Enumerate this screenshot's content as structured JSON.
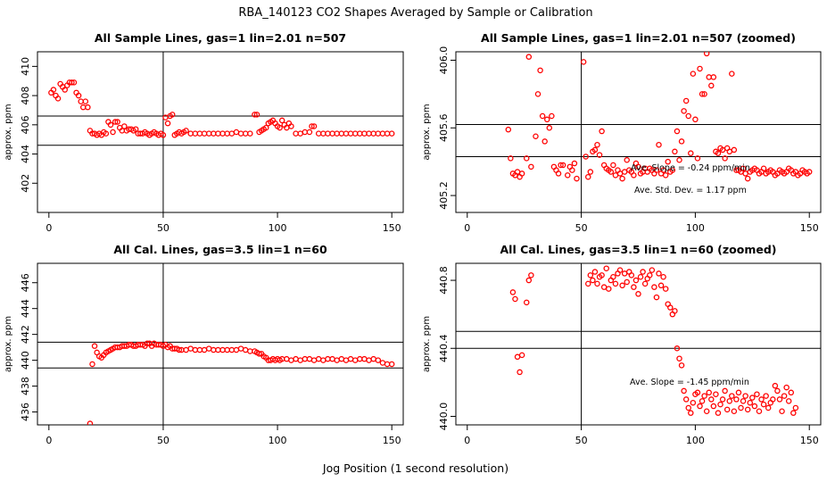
{
  "main_title": "RBA_140123  CO2 Shapes Averaged by Sample or Calibration",
  "xlabel": "Jog Position (1 second resolution)",
  "chart_data": [
    {
      "type": "scatter",
      "title": "All Sample Lines, gas=1 lin=2.01 n=507",
      "ylabel": "approx. ppm",
      "xlim": [
        -5,
        155
      ],
      "ylim": [
        400,
        411
      ],
      "xticks": [
        "0",
        "50",
        "100",
        "150"
      ],
      "xtick_values": [
        0,
        50,
        100,
        150
      ],
      "yticks": [
        "402",
        "404",
        "406",
        "408",
        "410"
      ],
      "ytick_values": [
        402,
        404,
        406,
        408,
        410
      ],
      "vline": 50,
      "hlines": [
        404.6,
        406.6
      ],
      "annotations": [],
      "x": [
        1,
        2,
        3,
        4,
        5,
        6,
        7,
        8,
        9,
        10,
        11,
        12,
        13,
        14,
        15,
        16,
        17,
        18,
        19,
        20,
        21,
        22,
        23,
        24,
        25,
        26,
        27,
        28,
        29,
        30,
        31,
        32,
        33,
        34,
        35,
        36,
        37,
        38,
        39,
        40,
        41,
        42,
        43,
        44,
        45,
        46,
        47,
        48,
        49,
        50,
        51,
        52,
        53,
        54,
        55,
        56,
        57,
        58,
        59,
        60,
        62,
        64,
        66,
        68,
        70,
        72,
        74,
        76,
        78,
        80,
        82,
        84,
        86,
        88,
        90,
        91,
        92,
        93,
        94,
        95,
        96,
        97,
        98,
        99,
        100,
        101,
        102,
        103,
        104,
        105,
        106,
        108,
        110,
        112,
        114,
        115,
        116,
        118,
        120,
        122,
        124,
        126,
        128,
        130,
        132,
        134,
        136,
        138,
        140,
        142,
        144,
        146,
        148,
        150
      ],
      "y": [
        408.2,
        408.4,
        408.0,
        407.8,
        408.8,
        408.6,
        408.4,
        408.7,
        408.9,
        408.9,
        408.9,
        408.2,
        408.0,
        407.6,
        407.2,
        407.6,
        407.2,
        405.6,
        405.4,
        405.4,
        405.3,
        405.4,
        405.3,
        405.5,
        405.4,
        406.2,
        406.0,
        405.5,
        406.2,
        406.2,
        405.8,
        405.6,
        405.9,
        405.6,
        405.7,
        405.7,
        405.6,
        405.7,
        405.4,
        405.4,
        405.4,
        405.5,
        405.4,
        405.3,
        405.4,
        405.5,
        405.4,
        405.3,
        405.4,
        405.3,
        406.5,
        406.1,
        406.6,
        406.7,
        405.3,
        405.4,
        405.5,
        405.4,
        405.5,
        405.6,
        405.4,
        405.4,
        405.4,
        405.4,
        405.4,
        405.4,
        405.4,
        405.4,
        405.4,
        405.4,
        405.5,
        405.4,
        405.4,
        405.4,
        406.7,
        406.7,
        405.5,
        405.6,
        405.7,
        405.8,
        406.1,
        406.2,
        406.3,
        406.1,
        405.9,
        405.8,
        406.3,
        406.0,
        405.8,
        406.1,
        405.9,
        405.4,
        405.4,
        405.5,
        405.5,
        405.9,
        405.9,
        405.4,
        405.4,
        405.4,
        405.4,
        405.4,
        405.4,
        405.4,
        405.4,
        405.4,
        405.4,
        405.4,
        405.4,
        405.4,
        405.4,
        405.4,
        405.4,
        405.4
      ]
    },
    {
      "type": "scatter",
      "title": "All Sample Lines, gas=1 lin=2.01 n=507 (zoomed)",
      "ylabel": "approx. ppm",
      "xlim": [
        -5,
        155
      ],
      "ylim": [
        405.1,
        406.05
      ],
      "xticks": [
        "0",
        "50",
        "100",
        "150"
      ],
      "xtick_values": [
        0,
        50,
        100,
        150
      ],
      "yticks": [
        "405.2",
        "405.6",
        "406.0"
      ],
      "ytick_values": [
        405.2,
        405.6,
        406.0
      ],
      "vline": 50,
      "hlines": [
        405.62,
        405.43
      ],
      "annotations": [
        "Ave. Slope =  -0.24  ppm/min",
        "Ave. Std. Dev. =  1.17  ppm"
      ],
      "x": [
        18,
        19,
        20,
        21,
        22,
        23,
        24,
        26,
        27,
        28,
        30,
        31,
        32,
        33,
        34,
        35,
        36,
        37,
        38,
        39,
        40,
        41,
        42,
        44,
        45,
        46,
        47,
        48,
        51,
        52,
        53,
        54,
        55,
        56,
        57,
        58,
        59,
        60,
        61,
        62,
        63,
        64,
        65,
        66,
        67,
        68,
        69,
        70,
        71,
        72,
        73,
        74,
        75,
        76,
        77,
        78,
        79,
        80,
        81,
        82,
        83,
        84,
        85,
        86,
        87,
        88,
        89,
        90,
        91,
        92,
        93,
        94,
        95,
        96,
        97,
        98,
        99,
        100,
        101,
        102,
        103,
        104,
        105,
        106,
        107,
        108,
        109,
        110,
        111,
        112,
        113,
        114,
        115,
        116,
        117,
        118,
        119,
        120,
        121,
        122,
        123,
        124,
        125,
        126,
        127,
        128,
        129,
        130,
        131,
        132,
        133,
        134,
        135,
        136,
        137,
        138,
        139,
        140,
        141,
        142,
        143,
        144,
        145,
        146,
        147,
        148,
        149,
        150
      ],
      "y": [
        405.59,
        405.42,
        405.33,
        405.32,
        405.34,
        405.31,
        405.33,
        405.42,
        406.02,
        405.37,
        405.55,
        405.8,
        405.94,
        405.67,
        405.52,
        405.65,
        405.6,
        405.67,
        405.37,
        405.35,
        405.33,
        405.38,
        405.38,
        405.32,
        405.37,
        405.35,
        405.39,
        405.3,
        405.99,
        405.43,
        405.31,
        405.34,
        405.46,
        405.47,
        405.5,
        405.44,
        405.58,
        405.38,
        405.36,
        405.35,
        405.34,
        405.38,
        405.32,
        405.35,
        405.33,
        405.3,
        405.34,
        405.41,
        405.35,
        405.34,
        405.32,
        405.39,
        405.37,
        405.33,
        405.34,
        405.36,
        405.34,
        405.36,
        405.35,
        405.33,
        405.35,
        405.5,
        405.33,
        405.35,
        405.32,
        405.4,
        405.34,
        405.35,
        405.46,
        405.58,
        405.41,
        405.52,
        405.7,
        405.76,
        405.67,
        405.45,
        405.92,
        405.65,
        405.42,
        405.95,
        405.8,
        405.8,
        406.04,
        405.9,
        405.85,
        405.9,
        405.46,
        405.45,
        405.48,
        405.47,
        405.42,
        405.48,
        405.46,
        405.92,
        405.47,
        405.35,
        405.35,
        405.34,
        405.36,
        405.33,
        405.3,
        405.34,
        405.35,
        405.36,
        405.35,
        405.33,
        405.34,
        405.36,
        405.33,
        405.34,
        405.35,
        405.34,
        405.32,
        405.33,
        405.35,
        405.34,
        405.33,
        405.34,
        405.36,
        405.35,
        405.33,
        405.34,
        405.32,
        405.33,
        405.35,
        405.34,
        405.33,
        405.34
      ]
    },
    {
      "type": "scatter",
      "title": "All Cal. Lines, gas=3.5 lin=1 n=60",
      "ylabel": "approx. ppm",
      "xlim": [
        -5,
        155
      ],
      "ylim": [
        435,
        447.5
      ],
      "xticks": [
        "0",
        "50",
        "100",
        "150"
      ],
      "xtick_values": [
        0,
        50,
        100,
        150
      ],
      "yticks": [
        "436",
        "438",
        "440",
        "442",
        "444",
        "446"
      ],
      "ytick_values": [
        436,
        438,
        440,
        442,
        444,
        446
      ],
      "vline": 50,
      "hlines": [
        441.4,
        439.4
      ],
      "annotations": [],
      "x": [
        18,
        19,
        20,
        21,
        22,
        23,
        24,
        25,
        26,
        27,
        28,
        29,
        30,
        31,
        32,
        33,
        34,
        35,
        36,
        37,
        38,
        39,
        40,
        41,
        42,
        43,
        44,
        45,
        46,
        47,
        48,
        49,
        50,
        51,
        52,
        53,
        54,
        55,
        56,
        57,
        58,
        60,
        62,
        64,
        66,
        68,
        70,
        72,
        74,
        76,
        78,
        80,
        82,
        84,
        86,
        88,
        90,
        91,
        92,
        93,
        94,
        95,
        96,
        97,
        98,
        99,
        100,
        101,
        102,
        104,
        106,
        108,
        110,
        112,
        114,
        116,
        118,
        120,
        122,
        124,
        126,
        128,
        130,
        132,
        134,
        136,
        138,
        140,
        142,
        144,
        146,
        148,
        150
      ],
      "y": [
        435.1,
        439.7,
        441.1,
        440.6,
        440.3,
        440.2,
        440.4,
        440.6,
        440.7,
        440.8,
        440.9,
        441.0,
        441.0,
        441.0,
        441.1,
        441.1,
        441.1,
        441.2,
        441.2,
        441.1,
        441.1,
        441.2,
        441.2,
        441.2,
        441.1,
        441.3,
        441.3,
        441.1,
        441.3,
        441.2,
        441.2,
        441.2,
        441.1,
        441.2,
        441.0,
        441.1,
        440.9,
        440.9,
        440.9,
        440.8,
        440.8,
        440.8,
        440.9,
        440.8,
        440.8,
        440.8,
        440.9,
        440.8,
        440.8,
        440.8,
        440.8,
        440.8,
        440.8,
        440.9,
        440.8,
        440.7,
        440.7,
        440.6,
        440.5,
        440.5,
        440.3,
        440.2,
        440.0,
        440.0,
        440.1,
        440.0,
        440.1,
        440.0,
        440.1,
        440.1,
        440.0,
        440.1,
        440.0,
        440.1,
        440.1,
        440.0,
        440.1,
        440.0,
        440.1,
        440.1,
        440.0,
        440.1,
        440.0,
        440.1,
        440.0,
        440.1,
        440.1,
        440.0,
        440.1,
        440.0,
        439.8,
        439.7,
        439.7
      ]
    },
    {
      "type": "scatter",
      "title": "All Cal. Lines, gas=3.5 lin=1 n=60 (zoomed)",
      "ylabel": "approx. ppm",
      "xlim": [
        -5,
        155
      ],
      "ylim": [
        439.95,
        440.9
      ],
      "xticks": [
        "0",
        "50",
        "100",
        "150"
      ],
      "xtick_values": [
        0,
        50,
        100,
        150
      ],
      "yticks": [
        "440.0",
        "440.4",
        "440.8"
      ],
      "ytick_values": [
        440.0,
        440.4,
        440.8
      ],
      "vline": 50,
      "hlines": [
        440.5,
        440.4
      ],
      "annotations": [
        "Ave. Slope =  -1.45  ppm/min"
      ],
      "x": [
        20,
        21,
        22,
        23,
        24,
        26,
        27,
        28,
        53,
        54,
        55,
        56,
        57,
        58,
        59,
        60,
        61,
        62,
        63,
        64,
        65,
        66,
        67,
        68,
        69,
        70,
        71,
        72,
        73,
        74,
        75,
        76,
        77,
        78,
        79,
        80,
        81,
        82,
        83,
        84,
        85,
        86,
        87,
        88,
        89,
        90,
        91,
        92,
        93,
        94,
        95,
        96,
        97,
        98,
        99,
        100,
        101,
        102,
        103,
        104,
        105,
        106,
        107,
        108,
        109,
        110,
        111,
        112,
        113,
        114,
        115,
        116,
        117,
        118,
        119,
        120,
        121,
        122,
        123,
        124,
        125,
        126,
        127,
        128,
        129,
        130,
        131,
        132,
        133,
        134,
        135,
        136,
        137,
        138,
        139,
        140,
        141,
        142,
        143,
        144
      ],
      "y": [
        440.73,
        440.69,
        440.35,
        440.26,
        440.36,
        440.67,
        440.8,
        440.83,
        440.78,
        440.83,
        440.8,
        440.85,
        440.78,
        440.82,
        440.83,
        440.76,
        440.87,
        440.75,
        440.8,
        440.82,
        440.78,
        440.84,
        440.86,
        440.77,
        440.84,
        440.79,
        440.85,
        440.83,
        440.76,
        440.8,
        440.72,
        440.82,
        440.85,
        440.78,
        440.81,
        440.83,
        440.86,
        440.76,
        440.7,
        440.84,
        440.77,
        440.82,
        440.75,
        440.66,
        440.64,
        440.6,
        440.62,
        440.4,
        440.34,
        440.3,
        440.15,
        440.1,
        440.05,
        440.02,
        440.08,
        440.13,
        440.14,
        440.06,
        440.09,
        440.12,
        440.03,
        440.14,
        440.1,
        440.06,
        440.13,
        440.02,
        440.07,
        440.1,
        440.15,
        440.04,
        440.09,
        440.12,
        440.03,
        440.1,
        440.14,
        440.05,
        440.09,
        440.12,
        440.04,
        440.08,
        440.11,
        440.06,
        440.13,
        440.03,
        440.1,
        440.07,
        440.12,
        440.05,
        440.08,
        440.1,
        440.18,
        440.15,
        440.1,
        440.03,
        440.12,
        440.17,
        440.09,
        440.14,
        440.02,
        440.05
      ]
    }
  ]
}
